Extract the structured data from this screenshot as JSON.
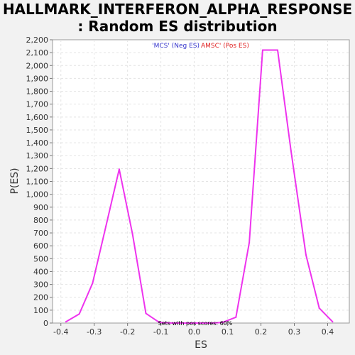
{
  "chart_data": {
    "type": "line",
    "title_line1": "HALLMARK_INTERFERON_ALPHA_RESPONSE",
    "title_line2": ": Random ES distribution",
    "xlabel": "ES",
    "ylabel": "P(ES)",
    "xlim": [
      -0.425,
      0.465
    ],
    "ylim": [
      0,
      2200
    ],
    "x_ticks": [
      -0.4,
      -0.3,
      -0.2,
      -0.1,
      0.0,
      0.1,
      0.2,
      0.3,
      0.4
    ],
    "x_tick_labels": [
      "-0.4",
      "-0.3",
      "-0.2",
      "-0.1",
      "0.0",
      "0.1",
      "0.2",
      "0.3",
      "0.4"
    ],
    "y_ticks": [
      0,
      100,
      200,
      300,
      400,
      500,
      600,
      700,
      800,
      900,
      1000,
      1100,
      1200,
      1300,
      1400,
      1500,
      1600,
      1700,
      1800,
      1900,
      2000,
      2100,
      2200
    ],
    "y_tick_labels": [
      "0",
      "100",
      "200",
      "300",
      "400",
      "500",
      "600",
      "700",
      "800",
      "900",
      "1,000",
      "1,100",
      "1,200",
      "1,300",
      "1,400",
      "1,500",
      "1,600",
      "1,700",
      "1,800",
      "1,900",
      "2,000",
      "2,100",
      "2,200"
    ],
    "grid": true,
    "legend": [
      {
        "label": "'MCS' (Neg ES)",
        "color": "#3333cc"
      },
      {
        "label": "AMSC' (Pos ES)",
        "color": "#e02020"
      }
    ],
    "annotation": "Sets with pos scores: 60%",
    "series": [
      {
        "color": "#ee33ee",
        "x": [
          -0.385,
          -0.345,
          -0.305,
          -0.265,
          -0.225,
          -0.185,
          -0.145,
          -0.105,
          -0.065,
          -0.025,
          0.015,
          0.055,
          0.085,
          0.125,
          0.165,
          0.205,
          0.25,
          0.29,
          0.335,
          0.375,
          0.415
        ],
        "y": [
          10,
          70,
          310,
          750,
          1195,
          690,
          75,
          5,
          0,
          0,
          0,
          0,
          5,
          45,
          625,
          2120,
          2120,
          1340,
          530,
          115,
          10
        ]
      }
    ]
  }
}
